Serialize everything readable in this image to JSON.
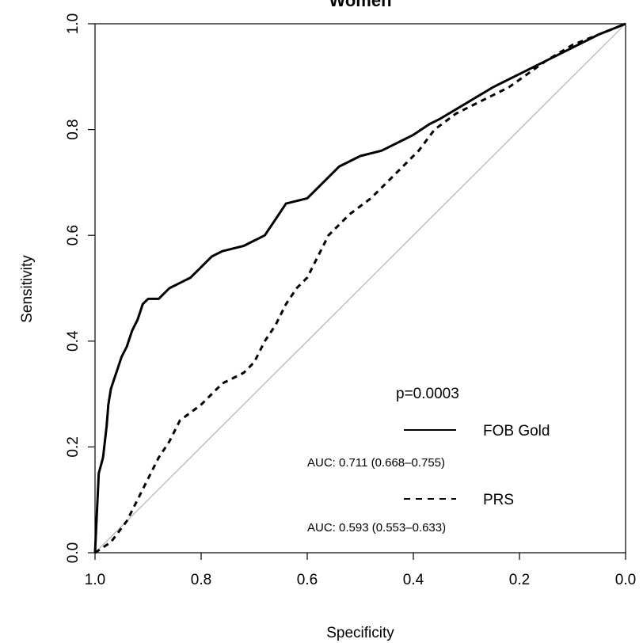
{
  "chart_data": {
    "type": "line",
    "title": "Women",
    "xlabel": "Specificity",
    "ylabel": "Sensitivity",
    "xlim": [
      1.0,
      0.0
    ],
    "ylim": [
      0.0,
      1.0
    ],
    "x_reversed": true,
    "xticks": [
      "1.0",
      "0.8",
      "0.6",
      "0.4",
      "0.2",
      "0.0"
    ],
    "yticks": [
      "0.0",
      "0.2",
      "0.4",
      "0.6",
      "0.8",
      "1.0"
    ],
    "grid": false,
    "legend_position": "bottom-right",
    "p_value": "p=0.0003",
    "reference_line": {
      "color": "#b3b3b3",
      "points": [
        [
          1.0,
          0.0
        ],
        [
          0.0,
          1.0
        ]
      ]
    },
    "series": [
      {
        "name": "FOB Gold",
        "style": "solid",
        "color": "#000000",
        "auc_text": "AUC: 0.711 (0.668–0.755)",
        "points": [
          [
            1.0,
            0.0
          ],
          [
            0.993,
            0.15
          ],
          [
            0.985,
            0.18
          ],
          [
            0.978,
            0.24
          ],
          [
            0.975,
            0.28
          ],
          [
            0.97,
            0.31
          ],
          [
            0.96,
            0.34
          ],
          [
            0.95,
            0.37
          ],
          [
            0.94,
            0.39
          ],
          [
            0.93,
            0.42
          ],
          [
            0.92,
            0.44
          ],
          [
            0.91,
            0.47
          ],
          [
            0.9,
            0.48
          ],
          [
            0.88,
            0.48
          ],
          [
            0.86,
            0.5
          ],
          [
            0.84,
            0.51
          ],
          [
            0.82,
            0.52
          ],
          [
            0.8,
            0.54
          ],
          [
            0.78,
            0.56
          ],
          [
            0.76,
            0.57
          ],
          [
            0.72,
            0.58
          ],
          [
            0.7,
            0.59
          ],
          [
            0.68,
            0.6
          ],
          [
            0.66,
            0.63
          ],
          [
            0.64,
            0.66
          ],
          [
            0.6,
            0.67
          ],
          [
            0.57,
            0.7
          ],
          [
            0.54,
            0.73
          ],
          [
            0.5,
            0.75
          ],
          [
            0.46,
            0.76
          ],
          [
            0.42,
            0.78
          ],
          [
            0.4,
            0.79
          ],
          [
            0.37,
            0.81
          ],
          [
            0.35,
            0.82
          ],
          [
            0.25,
            0.88
          ],
          [
            0.15,
            0.93
          ],
          [
            0.05,
            0.98
          ],
          [
            0.0,
            1.0
          ]
        ]
      },
      {
        "name": "PRS",
        "style": "dashed",
        "color": "#000000",
        "auc_text": "AUC: 0.593 (0.553–0.633)",
        "points": [
          [
            1.0,
            0.0
          ],
          [
            0.97,
            0.02
          ],
          [
            0.94,
            0.06
          ],
          [
            0.92,
            0.1
          ],
          [
            0.9,
            0.14
          ],
          [
            0.88,
            0.18
          ],
          [
            0.86,
            0.21
          ],
          [
            0.84,
            0.25
          ],
          [
            0.8,
            0.28
          ],
          [
            0.76,
            0.32
          ],
          [
            0.72,
            0.34
          ],
          [
            0.7,
            0.36
          ],
          [
            0.68,
            0.4
          ],
          [
            0.66,
            0.43
          ],
          [
            0.64,
            0.47
          ],
          [
            0.62,
            0.5
          ],
          [
            0.6,
            0.52
          ],
          [
            0.58,
            0.56
          ],
          [
            0.56,
            0.6
          ],
          [
            0.52,
            0.64
          ],
          [
            0.48,
            0.67
          ],
          [
            0.45,
            0.7
          ],
          [
            0.42,
            0.73
          ],
          [
            0.39,
            0.76
          ],
          [
            0.36,
            0.8
          ],
          [
            0.32,
            0.83
          ],
          [
            0.28,
            0.85
          ],
          [
            0.22,
            0.88
          ],
          [
            0.15,
            0.93
          ],
          [
            0.1,
            0.96
          ],
          [
            0.05,
            0.98
          ],
          [
            0.0,
            1.0
          ]
        ]
      }
    ]
  }
}
